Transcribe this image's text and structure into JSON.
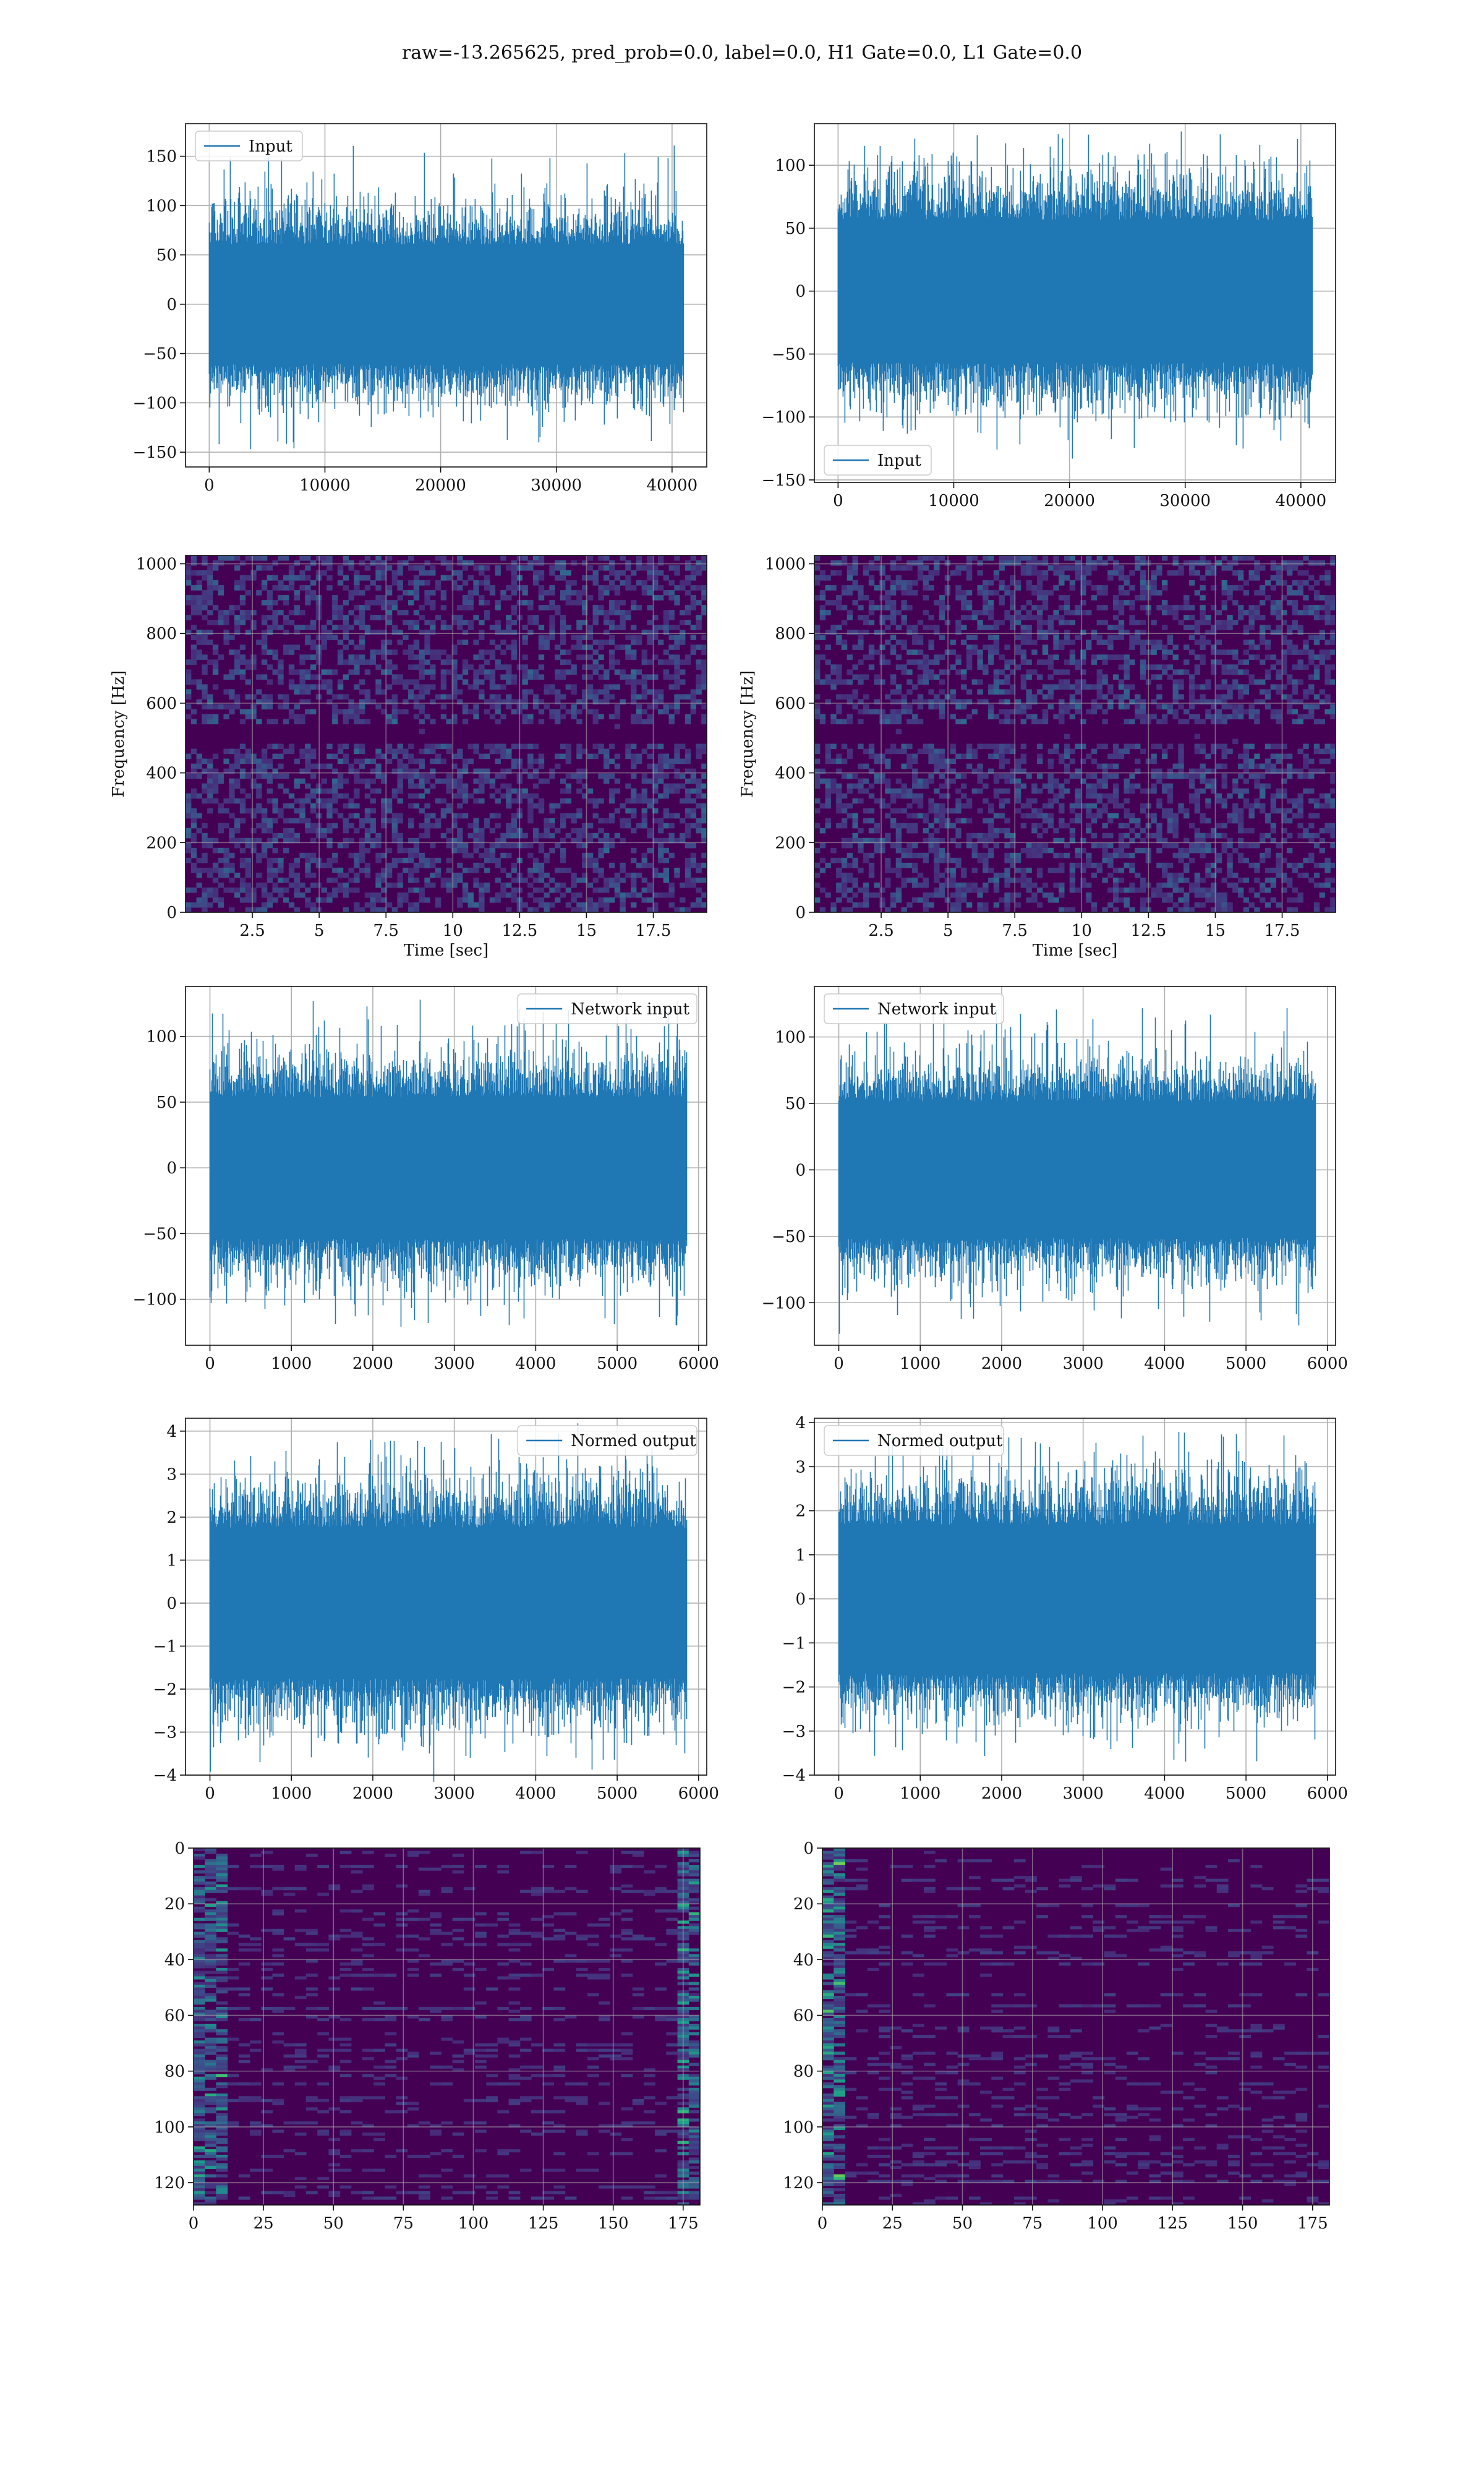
{
  "figure": {
    "title": "raw=-13.265625, pred_prob=0.0, label=0.0, H1 Gate=0.0, L1 Gate=0.0",
    "colors": {
      "line": "#1f77b4",
      "grid": "#b0b0b0",
      "viridis_low": "#440154",
      "viridis_high": "#fde725"
    }
  },
  "chart_data": [
    {
      "id": "input-h1",
      "type": "line",
      "legend": "Input",
      "legend_loc": "upper left",
      "xlim": [
        -2050,
        43000
      ],
      "ylim": [
        -165,
        183
      ],
      "xticks": [
        0,
        10000,
        20000,
        30000,
        40000
      ],
      "yticks": [
        -150,
        -100,
        -50,
        0,
        50,
        100,
        150
      ],
      "series": {
        "n": 41000,
        "amp": 45,
        "peak_max": 163,
        "peak_min": -148
      }
    },
    {
      "id": "input-l1",
      "type": "line",
      "legend": "Input",
      "legend_loc": "lower left",
      "xlim": [
        -2050,
        43000
      ],
      "ylim": [
        -152,
        133
      ],
      "xticks": [
        0,
        10000,
        20000,
        30000,
        40000
      ],
      "yticks": [
        -150,
        -100,
        -50,
        0,
        50,
        100
      ],
      "series": {
        "n": 41000,
        "amp": 42,
        "peak_max": 125,
        "peak_min": -135
      }
    },
    {
      "id": "spec-h1",
      "type": "heatmap",
      "xlabel": "Time [sec]",
      "ylabel": "Frequency [Hz]",
      "xlim": [
        0,
        19.5
      ],
      "ylim": [
        0,
        1024
      ],
      "xticks": [
        2.5,
        5.0,
        7.5,
        10.0,
        12.5,
        15.0,
        17.5
      ],
      "yticks": [
        0,
        200,
        400,
        600,
        800,
        1000
      ]
    },
    {
      "id": "spec-l1",
      "type": "heatmap",
      "xlabel": "Time [sec]",
      "ylabel": "Frequency [Hz]",
      "xlim": [
        0,
        19.5
      ],
      "ylim": [
        0,
        1024
      ],
      "xticks": [
        2.5,
        5.0,
        7.5,
        10.0,
        12.5,
        15.0,
        17.5
      ],
      "yticks": [
        0,
        200,
        400,
        600,
        800,
        1000
      ]
    },
    {
      "id": "netin-h1",
      "type": "line",
      "legend": "Network input",
      "legend_loc": "upper right",
      "xlim": [
        -300,
        6100
      ],
      "ylim": [
        -135,
        138
      ],
      "xticks": [
        0,
        1000,
        2000,
        3000,
        4000,
        5000,
        6000
      ],
      "yticks": [
        -100,
        -50,
        0,
        50,
        100
      ],
      "series": {
        "n": 5850,
        "amp": 40,
        "peak_max": 128,
        "peak_min": -120
      }
    },
    {
      "id": "netin-l1",
      "type": "line",
      "legend": "Network input",
      "legend_loc": "upper left",
      "xlim": [
        -300,
        6100
      ],
      "ylim": [
        -132,
        138
      ],
      "xticks": [
        0,
        1000,
        2000,
        3000,
        4000,
        5000,
        6000
      ],
      "yticks": [
        -100,
        -50,
        0,
        50,
        100
      ],
      "series": {
        "n": 5850,
        "amp": 38,
        "peak_max": 122,
        "peak_min": -120
      }
    },
    {
      "id": "normed-h1",
      "type": "line",
      "legend": "Normed output",
      "legend_loc": "upper right",
      "xlim": [
        -300,
        6100
      ],
      "ylim": [
        -4.0,
        4.3
      ],
      "xticks": [
        0,
        1000,
        2000,
        3000,
        4000,
        5000,
        6000
      ],
      "yticks": [
        -4,
        -3,
        -2,
        -1,
        0,
        1,
        2,
        3,
        4
      ],
      "series": {
        "n": 5850,
        "amp": 1.3,
        "peak_max": 3.95,
        "peak_min": -3.6
      }
    },
    {
      "id": "normed-l1",
      "type": "line",
      "legend": "Normed output",
      "legend_loc": "upper left",
      "xlim": [
        -300,
        6100
      ],
      "ylim": [
        -4.0,
        4.1
      ],
      "xticks": [
        0,
        1000,
        2000,
        3000,
        4000,
        5000,
        6000
      ],
      "yticks": [
        -4,
        -3,
        -2,
        -1,
        0,
        1,
        2,
        3,
        4
      ],
      "series": {
        "n": 5850,
        "amp": 1.25,
        "peak_max": 3.8,
        "peak_min": -3.7
      }
    },
    {
      "id": "feat-h1",
      "type": "heatmap",
      "xlim": [
        0,
        181
      ],
      "ylim": [
        128,
        0
      ],
      "xticks": [
        0,
        25,
        50,
        75,
        100,
        125,
        150,
        175
      ],
      "yticks": [
        0,
        20,
        40,
        60,
        80,
        100,
        120
      ]
    },
    {
      "id": "feat-l1",
      "type": "heatmap",
      "xlim": [
        0,
        181
      ],
      "ylim": [
        128,
        0
      ],
      "xticks": [
        0,
        25,
        50,
        75,
        100,
        125,
        150,
        175
      ],
      "yticks": [
        0,
        20,
        40,
        60,
        80,
        100,
        120
      ]
    }
  ]
}
